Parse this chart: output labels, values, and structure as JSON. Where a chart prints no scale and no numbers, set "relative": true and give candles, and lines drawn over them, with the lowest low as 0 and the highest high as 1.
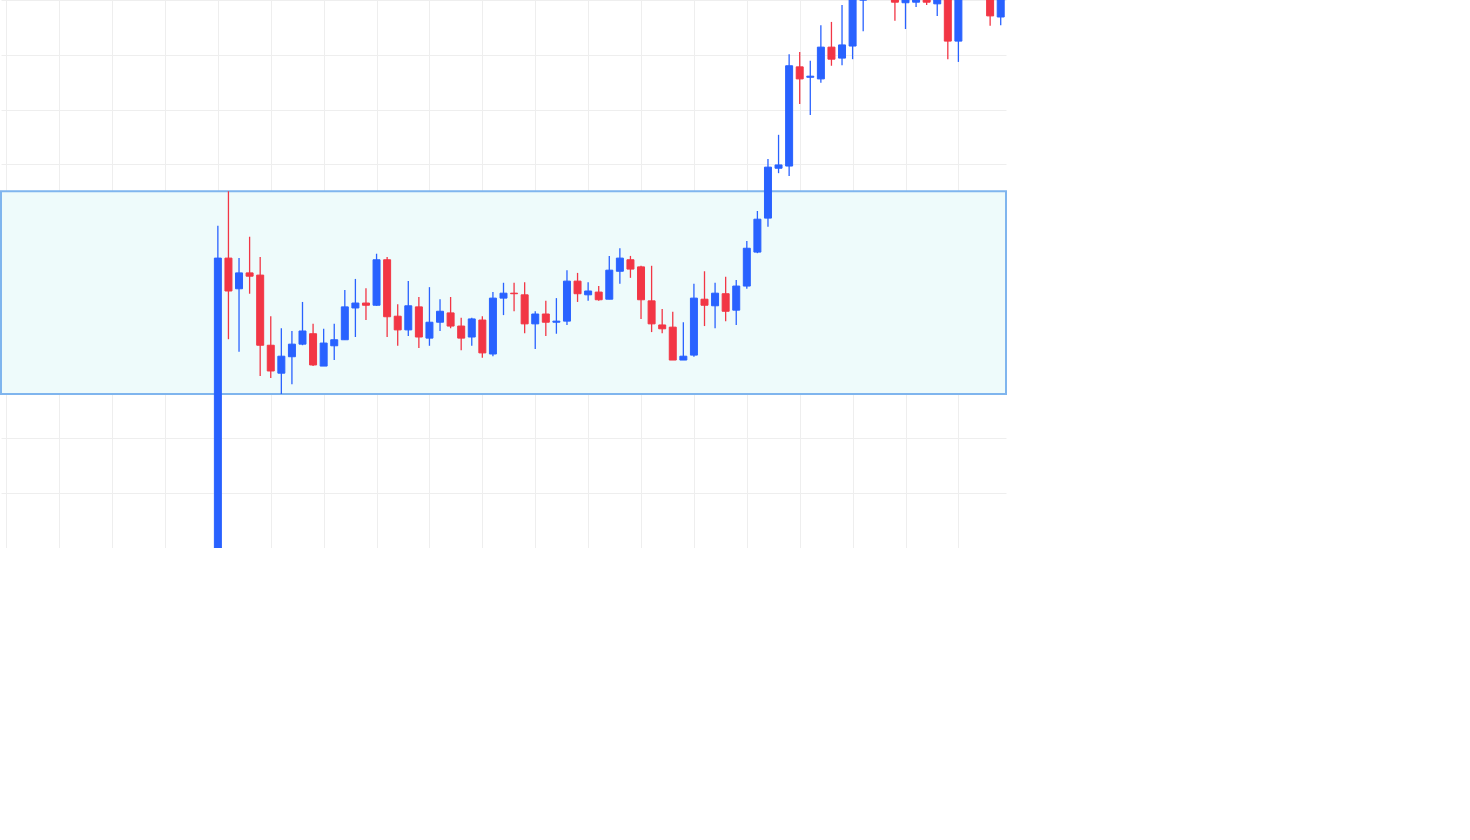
{
  "chart_data": {
    "type": "candlestick",
    "relative": true,
    "grid": true,
    "categories": [
      null,
      null,
      null,
      null,
      null,
      null,
      null,
      null,
      null,
      null,
      null,
      null,
      null,
      null,
      null,
      null,
      null,
      null,
      null,
      null,
      null,
      null,
      null,
      null,
      null,
      null,
      null,
      null,
      null,
      null,
      null,
      null,
      null,
      null,
      null,
      null,
      null,
      null,
      null,
      null,
      null,
      null,
      null,
      null,
      null,
      null,
      null,
      null,
      null,
      null,
      null,
      null,
      null,
      null,
      null,
      null,
      null,
      null,
      null,
      null,
      null,
      null,
      null,
      null,
      null,
      null,
      null,
      null,
      null,
      null,
      null,
      null,
      null,
      null,
      null,
      null,
      null,
      null,
      null,
      null,
      null,
      null,
      null,
      null,
      null,
      null,
      null,
      null,
      null,
      null,
      null,
      null,
      null,
      null,
      null
    ],
    "ohlc": [
      null,
      null,
      null,
      null,
      null,
      null,
      null,
      null,
      null,
      null,
      null,
      null,
      null,
      null,
      null,
      null,
      null,
      null,
      null,
      null,
      [
        0,
        0.588,
        0,
        0.529
      ],
      [
        0.529,
        0.651,
        0.381,
        0.469
      ],
      [
        0.473,
        0.529,
        0.358,
        0.502
      ],
      [
        0.502,
        0.568,
        0.464,
        0.496
      ],
      [
        0.498,
        0.531,
        0.314,
        0.37
      ],
      [
        0.37,
        0.423,
        0.31,
        0.323
      ],
      [
        0.319,
        0.401,
        0.281,
        0.35
      ],
      [
        0.349,
        0.396,
        0.299,
        0.372
      ],
      [
        0.372,
        0.449,
        0.37,
        0.396
      ],
      [
        0.391,
        0.409,
        0.332,
        0.334
      ],
      [
        0.332,
        0.4,
        0.332,
        0.374
      ],
      [
        0.369,
        0.409,
        0.343,
        0.38
      ],
      [
        0.38,
        0.471,
        0.38,
        0.44
      ],
      [
        0.438,
        0.491,
        0.385,
        0.447
      ],
      [
        0.447,
        0.474,
        0.416,
        0.443
      ],
      [
        0.443,
        0.537,
        0.442,
        0.526
      ],
      [
        0.526,
        0.531,
        0.385,
        0.422
      ],
      [
        0.423,
        0.445,
        0.369,
        0.398
      ],
      [
        0.398,
        0.487,
        0.387,
        0.442
      ],
      [
        0.44,
        0.458,
        0.365,
        0.385
      ],
      [
        0.383,
        0.476,
        0.369,
        0.412
      ],
      [
        0.412,
        0.454,
        0.396,
        0.432
      ],
      [
        0.429,
        0.458,
        0.401,
        0.405
      ],
      [
        0.405,
        0.42,
        0.361,
        0.383
      ],
      [
        0.385,
        0.42,
        0.369,
        0.418
      ],
      [
        0.416,
        0.423,
        0.347,
        0.356
      ],
      [
        0.354,
        0.467,
        0.35,
        0.456
      ],
      [
        0.456,
        0.484,
        0.425,
        0.465
      ],
      [
        0.465,
        0.484,
        0.432,
        0.464
      ],
      [
        0.462,
        0.485,
        0.392,
        0.409
      ],
      [
        0.409,
        0.432,
        0.363,
        0.427
      ],
      [
        0.427,
        0.451,
        0.387,
        0.412
      ],
      [
        0.412,
        0.456,
        0.391,
        0.414
      ],
      [
        0.414,
        0.507,
        0.407,
        0.487
      ],
      [
        0.487,
        0.502,
        0.449,
        0.464
      ],
      [
        0.462,
        0.485,
        0.451,
        0.469
      ],
      [
        0.467,
        0.478,
        0.451,
        0.453
      ],
      [
        0.454,
        0.533,
        0.454,
        0.507
      ],
      [
        0.505,
        0.547,
        0.482,
        0.529
      ],
      [
        0.526,
        0.533,
        0.493,
        0.509
      ],
      [
        0.513,
        0.515,
        0.418,
        0.453
      ],
      [
        0.451,
        0.515,
        0.394,
        0.409
      ],
      [
        0.407,
        0.436,
        0.392,
        0.4
      ],
      [
        0.403,
        0.431,
        0.343,
        0.343
      ],
      [
        0.343,
        0.412,
        0.343,
        0.35
      ],
      [
        0.352,
        0.482,
        0.349,
        0.456
      ],
      [
        0.454,
        0.505,
        0.405,
        0.443
      ],
      [
        0.442,
        0.484,
        0.401,
        0.465
      ],
      [
        0.464,
        0.495,
        0.414,
        0.432
      ],
      [
        0.434,
        0.489,
        0.407,
        0.478
      ],
      [
        0.478,
        0.56,
        0.473,
        0.547
      ],
      [
        0.54,
        0.615,
        0.538,
        0.6
      ],
      [
        0.602,
        0.71,
        0.586,
        0.695
      ],
      [
        0.693,
        0.754,
        0.684,
        0.699
      ],
      [
        0.697,
        0.901,
        0.679,
        0.88
      ],
      [
        0.878,
        0.905,
        0.81,
        0.856
      ],
      [
        0.859,
        0.889,
        0.79,
        0.861
      ],
      [
        0.856,
        0.954,
        0.849,
        0.914
      ],
      [
        0.914,
        0.96,
        0.88,
        0.892
      ],
      [
        0.894,
        0.991,
        0.881,
        0.918
      ],
      [
        0.916,
        1,
        0.892,
        1
      ],
      [
        1,
        1,
        0.943,
        1
      ],
      null,
      null,
      [
        1,
        1,
        0.962,
        0.996
      ],
      [
        0.995,
        1,
        0.947,
        1
      ],
      [
        0.996,
        1,
        0.987,
        1
      ],
      [
        1,
        1,
        0.991,
        0.996
      ],
      [
        0.993,
        1,
        0.971,
        1
      ],
      [
        1,
        1,
        0.892,
        0.925
      ],
      [
        0.925,
        1,
        0.887,
        1
      ],
      null,
      null,
      [
        1,
        1,
        0.953,
        0.971
      ],
      [
        0.969,
        1,
        0.954,
        1
      ]
    ],
    "colors": [
      null,
      null,
      null,
      null,
      null,
      null,
      null,
      null,
      null,
      null,
      null,
      null,
      null,
      null,
      null,
      null,
      null,
      null,
      null,
      null,
      "#2962ff",
      "#f23645",
      "#2962ff",
      "#f23645",
      "#f23645",
      "#f23645",
      "#2962ff",
      "#2962ff",
      "#2962ff",
      "#f23645",
      "#2962ff",
      "#2962ff",
      "#2962ff",
      "#2962ff",
      "#f23645",
      "#2962ff",
      "#f23645",
      "#f23645",
      "#2962ff",
      "#f23645",
      "#2962ff",
      "#2962ff",
      "#f23645",
      "#f23645",
      "#2962ff",
      "#f23645",
      "#2962ff",
      "#2962ff",
      "#f23645",
      "#f23645",
      "#2962ff",
      "#f23645",
      "#2962ff",
      "#2962ff",
      "#f23645",
      "#2962ff",
      "#f23645",
      "#2962ff",
      "#2962ff",
      "#f23645",
      "#f23645",
      "#f23645",
      "#f23645",
      "#f23645",
      "#2962ff",
      "#2962ff",
      "#f23645",
      "#2962ff",
      "#f23645",
      "#2962ff",
      "#2962ff",
      "#2962ff",
      "#2962ff",
      "#2962ff",
      "#2962ff",
      "#f23645",
      "#2962ff",
      "#2962ff",
      "#f23645",
      "#2962ff",
      "#2962ff",
      "#2962ff",
      null,
      null,
      "#f23645",
      "#2962ff",
      "#2962ff",
      "#f23645",
      "#2962ff",
      "#f23645",
      "#2962ff",
      null,
      null,
      "#f23645",
      "#2962ff"
    ],
    "bands": [
      {
        "axis": "y",
        "from": 0.281,
        "to": 0.651,
        "color": "#eefbfb"
      }
    ]
  }
}
